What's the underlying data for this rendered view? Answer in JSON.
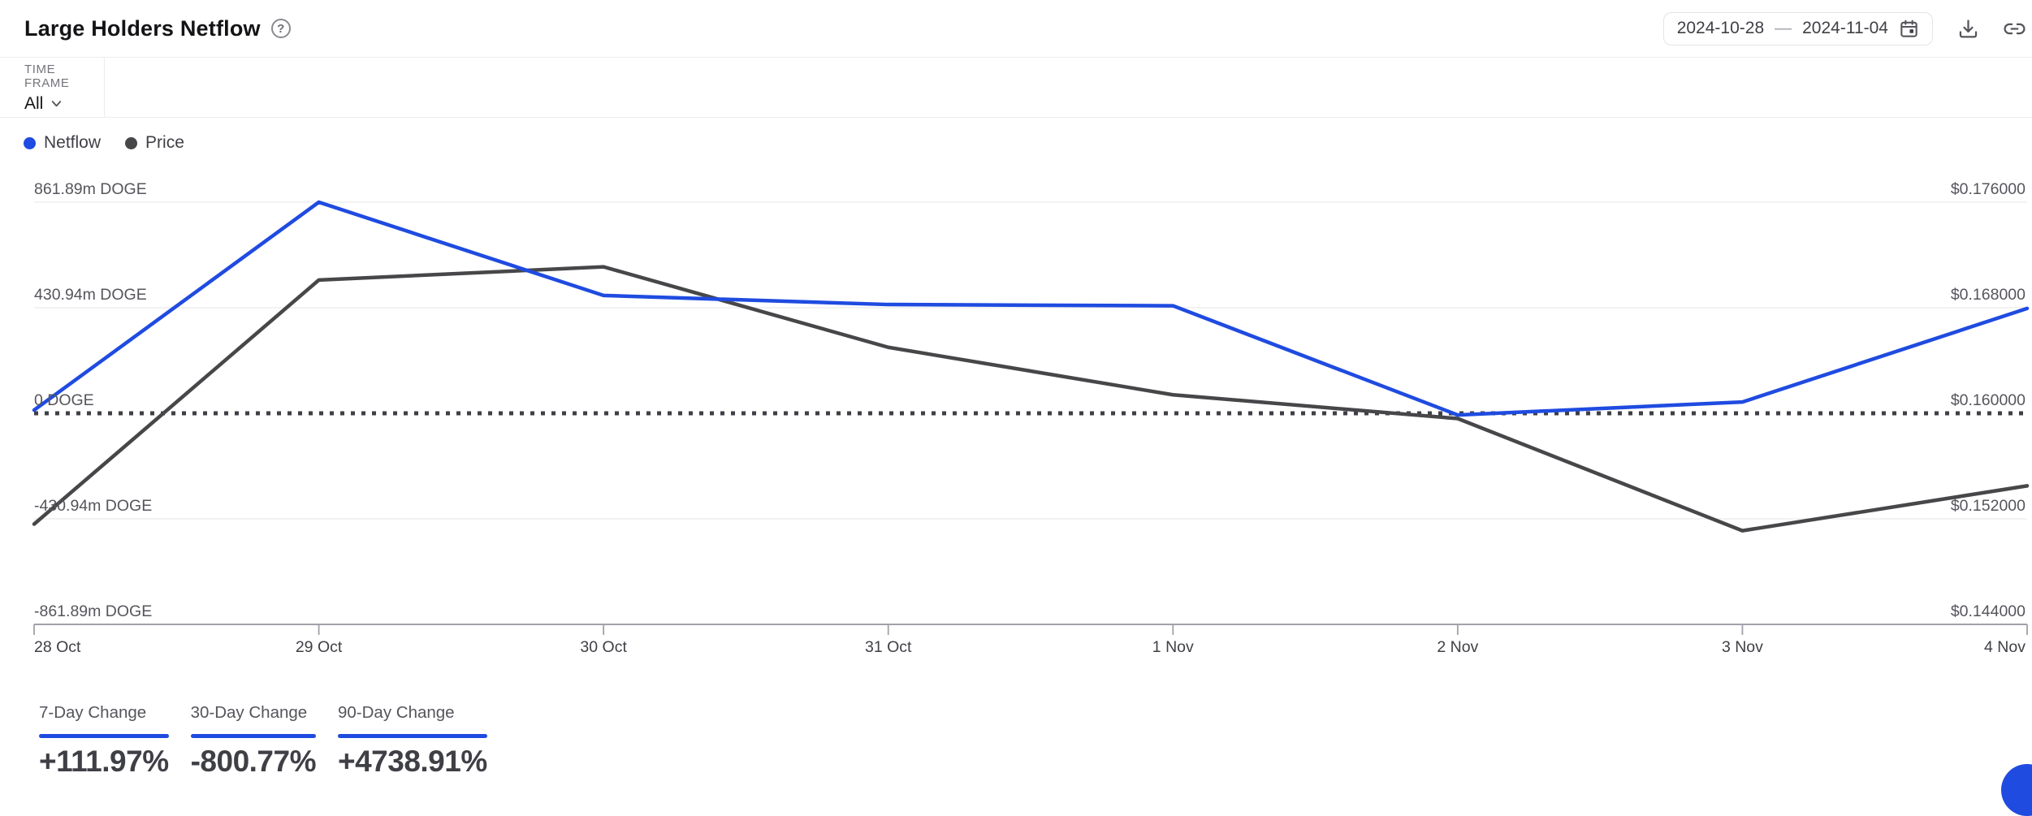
{
  "colors": {
    "accent": "#1f4be0",
    "price_line": "#47474a",
    "zero_line": "#3f3f46",
    "grid_line": "#ededef",
    "axis_line": "#a1a1aa"
  },
  "header": {
    "title": "Large Holders Netflow",
    "help_glyph": "?",
    "date_range": {
      "start": "2024-10-28",
      "separator": "—",
      "end": "2024-11-04"
    }
  },
  "icons": {
    "help": "question-mark-circle",
    "calendar": "calendar",
    "download": "download-tray-arrow",
    "link": "chain-link",
    "chevron": "chevron-down",
    "chat": "chat-bubble"
  },
  "toolbar": {
    "time_frame_label": "TIME FRAME",
    "time_frame_value": "All"
  },
  "legend": [
    {
      "label": "Netflow",
      "color": "#1f4be0"
    },
    {
      "label": "Price",
      "color": "#47474a"
    }
  ],
  "chart_data": {
    "type": "line",
    "title": "Large Holders Netflow",
    "x": [
      "28 Oct",
      "29 Oct",
      "30 Oct",
      "31 Oct",
      "1 Nov",
      "2 Nov",
      "3 Nov",
      "4 Nov"
    ],
    "series": [
      {
        "name": "Netflow",
        "unit": "m DOGE",
        "color": "#1f4be0",
        "values": [
          13,
          861.89,
          481,
          444,
          439,
          -7,
          46,
          428
        ]
      },
      {
        "name": "Price",
        "unit": "USD",
        "color": "#47474a",
        "values": [
          0.1516,
          0.1701,
          0.1711,
          0.165,
          0.1614,
          0.1596,
          0.1511,
          0.1545
        ]
      }
    ],
    "left_axis": {
      "labels": [
        "861.89m DOGE",
        "430.94m DOGE",
        "0 DOGE",
        "-430.94m DOGE",
        "-861.89m DOGE"
      ],
      "max": 861.89,
      "min": -861.89
    },
    "right_axis": {
      "labels": [
        "$0.176000",
        "$0.168000",
        "$0.160000",
        "$0.152000",
        "$0.144000"
      ],
      "max": 0.176,
      "min": 0.144
    },
    "zero_line_dotted": true,
    "grid": "horizontal",
    "legend_position": "top-left"
  },
  "stats": [
    {
      "label": "7-Day Change",
      "value": "+111.97%"
    },
    {
      "label": "30-Day Change",
      "value": "-800.77%"
    },
    {
      "label": "90-Day Change",
      "value": "+4738.91%"
    }
  ]
}
